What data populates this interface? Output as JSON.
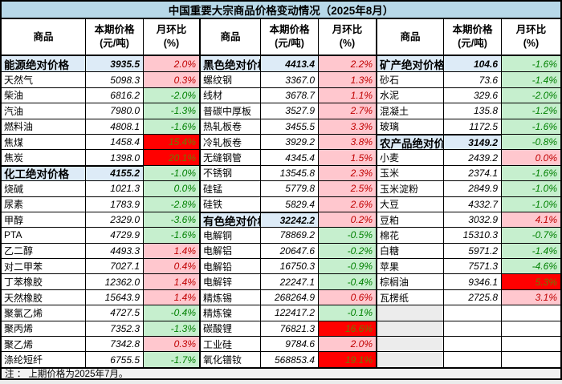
{
  "title": "中国重要大宗商品价格变动情况（2025年8月）",
  "note": "注 ： 上期价格为2025年7月。",
  "header": {
    "commodity": "商品",
    "price_line1": "本期价格",
    "price_line2": "(元/吨)",
    "mom_line1": "月环比",
    "mom_line2": "(%)"
  },
  "colors": {
    "title_bg": "#b7d8e8",
    "group_row_bg": "#ddebf7",
    "increase_bg": "#ffc7ce",
    "increase_text": "#c00000",
    "decrease_bg": "#c6efce",
    "decrease_text": "#008000",
    "surge_bg": "#ff0000",
    "surge_text": "#6d7a00",
    "vacant_bg": "#ececec",
    "page_bg": "#ebebeb"
  },
  "chart_data": {
    "type": "table",
    "title": "中国重要大宗商品价格变动情况（2025年8月）",
    "column_headers": [
      "商品",
      "本期价格(元/吨)",
      "月环比(%)"
    ],
    "row_count": 20,
    "groups": [
      {
        "name": "energy-chemical",
        "rows": [
          {
            "name": "能源绝对价格",
            "price": "3935.5",
            "pct": "2.0%",
            "trend": "pos",
            "is_group": true
          },
          {
            "name": "天然气",
            "price": "5098.3",
            "pct": "0.3%",
            "trend": "pos"
          },
          {
            "name": "柴油",
            "price": "6816.2",
            "pct": "-2.0%",
            "trend": "neg"
          },
          {
            "name": "汽油",
            "price": "7980.0",
            "pct": "-1.3%",
            "trend": "neg"
          },
          {
            "name": "燃料油",
            "price": "4808.1",
            "pct": "-1.6%",
            "trend": "neg"
          },
          {
            "name": "焦煤",
            "price": "1458.4",
            "pct": "15.4%",
            "trend": "hot"
          },
          {
            "name": "焦炭",
            "price": "1398.0",
            "pct": "20.1%",
            "trend": "hot"
          },
          {
            "name": "化工绝对价格",
            "price": "4155.2",
            "pct": "-1.0%",
            "trend": "neg",
            "is_group": true
          },
          {
            "name": "烧碱",
            "price": "1021.3",
            "pct": "0.0%",
            "trend": "neg"
          },
          {
            "name": "尿素",
            "price": "1783.9",
            "pct": "-2.8%",
            "trend": "neg"
          },
          {
            "name": "甲醇",
            "price": "2329.0",
            "pct": "-3.6%",
            "trend": "neg"
          },
          {
            "name": "PTA",
            "price": "4729.9",
            "pct": "-1.6%",
            "trend": "neg"
          },
          {
            "name": "乙二醇",
            "price": "4493.3",
            "pct": "1.4%",
            "trend": "pos"
          },
          {
            "name": "对二甲苯",
            "price": "7027.1",
            "pct": "0.4%",
            "trend": "pos"
          },
          {
            "name": "丁苯橡胶",
            "price": "12362.0",
            "pct": "1.4%",
            "trend": "pos"
          },
          {
            "name": "天然橡胶",
            "price": "15643.9",
            "pct": "1.4%",
            "trend": "pos"
          },
          {
            "name": "聚氯乙烯",
            "price": "4727.5",
            "pct": "-0.4%",
            "trend": "neg"
          },
          {
            "name": "聚丙烯",
            "price": "7352.3",
            "pct": "-1.3%",
            "trend": "neg"
          },
          {
            "name": "聚乙烯",
            "price": "7342.8",
            "pct": "0.3%",
            "trend": "pos"
          },
          {
            "name": "涤纶短纤",
            "price": "6755.5",
            "pct": "-1.7%",
            "trend": "neg"
          }
        ]
      },
      {
        "name": "ferrous-nonferrous",
        "rows": [
          {
            "name": "黑色绝对价格",
            "price": "4413.4",
            "pct": "2.2%",
            "trend": "pos",
            "is_group": true
          },
          {
            "name": "螺纹钢",
            "price": "3367.0",
            "pct": "1.3%",
            "trend": "pos"
          },
          {
            "name": "线材",
            "price": "3678.7",
            "pct": "1.1%",
            "trend": "pos"
          },
          {
            "name": "普碳中厚板",
            "price": "3527.9",
            "pct": "2.7%",
            "trend": "pos"
          },
          {
            "name": "热轧板卷",
            "price": "3455.5",
            "pct": "3.3%",
            "trend": "pos"
          },
          {
            "name": "冷轧板卷",
            "price": "3929.2",
            "pct": "3.8%",
            "trend": "pos"
          },
          {
            "name": "无缝钢管",
            "price": "4345.4",
            "pct": "1.5%",
            "trend": "pos"
          },
          {
            "name": "不锈钢",
            "price": "13545.8",
            "pct": "2.3%",
            "trend": "pos"
          },
          {
            "name": "硅锰",
            "price": "5779.8",
            "pct": "2.5%",
            "trend": "pos"
          },
          {
            "name": "硅铁",
            "price": "5829.4",
            "pct": "2.6%",
            "trend": "pos"
          },
          {
            "name": "有色绝对价格",
            "price": "32242.2",
            "pct": "0.2%",
            "trend": "pos",
            "is_group": true
          },
          {
            "name": "电解铜",
            "price": "78869.2",
            "pct": "-0.5%",
            "trend": "neg"
          },
          {
            "name": "电解铝",
            "price": "20647.6",
            "pct": "-0.2%",
            "trend": "neg"
          },
          {
            "name": "电解铅",
            "price": "16750.3",
            "pct": "-0.9%",
            "trend": "neg"
          },
          {
            "name": "电解锌",
            "price": "22247.1",
            "pct": "-0.4%",
            "trend": "neg"
          },
          {
            "name": "精炼锡",
            "price": "268264.9",
            "pct": "0.6%",
            "trend": "pos"
          },
          {
            "name": "精炼镍",
            "price": "122417.2",
            "pct": "-0.1%",
            "trend": "neg"
          },
          {
            "name": "碳酸锂",
            "price": "76821.3",
            "pct": "16.6%",
            "trend": "hot"
          },
          {
            "name": "工业硅",
            "price": "9784.6",
            "pct": "2.0%",
            "trend": "pos"
          },
          {
            "name": "氧化镨钕",
            "price": "568853.4",
            "pct": "19.1%",
            "trend": "hot"
          }
        ]
      },
      {
        "name": "mineral-agricultural",
        "rows": [
          {
            "name": "矿产绝对价格",
            "price": "104.6",
            "pct": "-1.6%",
            "trend": "neg",
            "is_group": true
          },
          {
            "name": "砂石",
            "price": "73.6",
            "pct": "-1.4%",
            "trend": "neg"
          },
          {
            "name": "水泥",
            "price": "329.6",
            "pct": "-2.0%",
            "trend": "neg"
          },
          {
            "name": "混凝土",
            "price": "135.8",
            "pct": "-1.2%",
            "trend": "neg"
          },
          {
            "name": "玻璃",
            "price": "1172.5",
            "pct": "-1.6%",
            "trend": "neg"
          },
          {
            "name": "农产品绝对价格",
            "price": "3149.2",
            "pct": "-0.8%",
            "trend": "neg",
            "is_group": true
          },
          {
            "name": "小麦",
            "price": "2439.2",
            "pct": "0.0%",
            "trend": "pos"
          },
          {
            "name": "玉米",
            "price": "2374.1",
            "pct": "-1.6%",
            "trend": "neg"
          },
          {
            "name": "玉米淀粉",
            "price": "2849.9",
            "pct": "-1.0%",
            "trend": "neg"
          },
          {
            "name": "大豆",
            "price": "4332.7",
            "pct": "-1.0%",
            "trend": "neg"
          },
          {
            "name": "豆粕",
            "price": "3032.9",
            "pct": "4.1%",
            "trend": "pos"
          },
          {
            "name": "棉花",
            "price": "15310.3",
            "pct": "-0.7%",
            "trend": "neg"
          },
          {
            "name": "白糖",
            "price": "5971.2",
            "pct": "-1.4%",
            "trend": "neg"
          },
          {
            "name": "苹果",
            "price": "7571.3",
            "pct": "-4.6%",
            "trend": "neg"
          },
          {
            "name": "棕榈油",
            "price": "9346.1",
            "pct": "5.3%",
            "trend": "hot"
          },
          {
            "name": "瓦楞纸",
            "price": "2725.8",
            "pct": "3.1%",
            "trend": "pos"
          }
        ]
      }
    ]
  }
}
